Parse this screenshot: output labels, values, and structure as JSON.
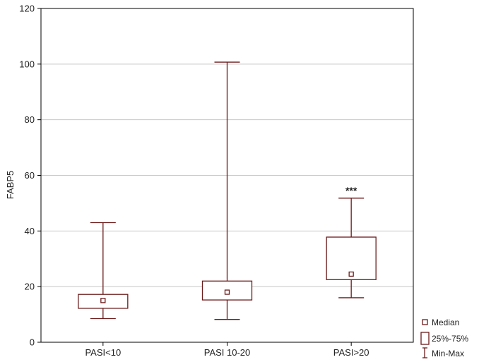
{
  "chart_data": {
    "type": "box",
    "title": "",
    "xlabel": "",
    "ylabel": "FABP5",
    "ylim": [
      0,
      120
    ],
    "yticks": [
      0,
      20,
      40,
      60,
      80,
      100,
      120
    ],
    "grid": true,
    "categories": [
      "PASI<10",
      "PASI 10-20",
      "PASI>20"
    ],
    "boxes": [
      {
        "category": "PASI<10",
        "min": 8.5,
        "q1": 12.2,
        "median": 15,
        "q3": 17.2,
        "max": 43,
        "annotation": ""
      },
      {
        "category": "PASI 10-20",
        "min": 8.2,
        "q1": 15.2,
        "median": 18,
        "q3": 22,
        "max": 100.7,
        "annotation": ""
      },
      {
        "category": "PASI>20",
        "min": 16,
        "q1": 22.5,
        "median": 24.5,
        "q3": 37.8,
        "max": 51.8,
        "annotation": "***"
      }
    ],
    "legend": {
      "position": "bottom-right",
      "items": [
        {
          "symbol": "median",
          "label": "Median"
        },
        {
          "symbol": "box",
          "label": "25%-75%"
        },
        {
          "symbol": "whisker",
          "label": "Min-Max"
        }
      ]
    },
    "colors": {
      "box": "#6b1a1a",
      "grid": "#c8c8c8",
      "axis": "#000000"
    }
  }
}
